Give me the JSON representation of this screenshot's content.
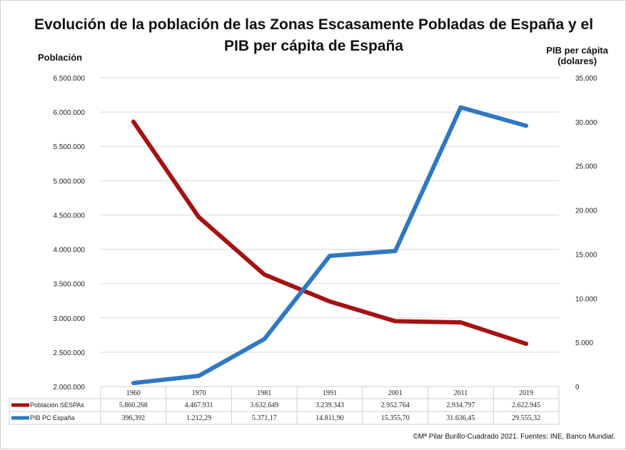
{
  "chart_data": {
    "type": "line",
    "title_line1": "Evolución de la población de las Zonas Escasamente Pobladas de España y el",
    "title_line2": "PIB per cápita de España",
    "ylabel_left": "Población",
    "ylabel_right_line1": "PIB per cápita",
    "ylabel_right_line2": "(dolares)",
    "categories": [
      "1960",
      "1970",
      "1981",
      "1991",
      "2001",
      "2011",
      "2019"
    ],
    "ylim_left": [
      2000000,
      6500000
    ],
    "ylim_right": [
      0,
      35000
    ],
    "left_ticks": [
      "2.000.000",
      "2.500.000",
      "3.000.000",
      "3.500.000",
      "4.000.000",
      "4.500.000",
      "5.000.000",
      "5.500.000",
      "6.000.000",
      "6.500.000"
    ],
    "right_ticks": [
      "0",
      "5.000",
      "10.000",
      "15.000",
      "20.000",
      "25.000",
      "30.000",
      "35.000"
    ],
    "grid": true,
    "legend_placement": "data-table",
    "series": [
      {
        "name": "Población SESPAs",
        "axis": "left",
        "color": "#a51212",
        "values": [
          5860268,
          4467931,
          3632649,
          3239343,
          2952764,
          2934797,
          2622945
        ],
        "labels": [
          "5.860.268",
          "4.467.931",
          "3.632.649",
          "3.239.343",
          "2.952.764",
          "2.934.797",
          "2.622.945"
        ]
      },
      {
        "name": "PIB PC España",
        "axis": "right",
        "color": "#2f78c2",
        "values": [
          396.392,
          1212.29,
          5371.17,
          14811.9,
          15355.7,
          31636.45,
          29555.32
        ],
        "labels": [
          "396,392",
          "1.212,29",
          "5.371,17",
          "14.811,90",
          "15.355,70",
          "31.636,45",
          "29.555,32"
        ]
      }
    ],
    "credit": "©Mª Pilar Burillo-Cuadrado 2021. Fuentes: INE, Banco Mundial."
  }
}
